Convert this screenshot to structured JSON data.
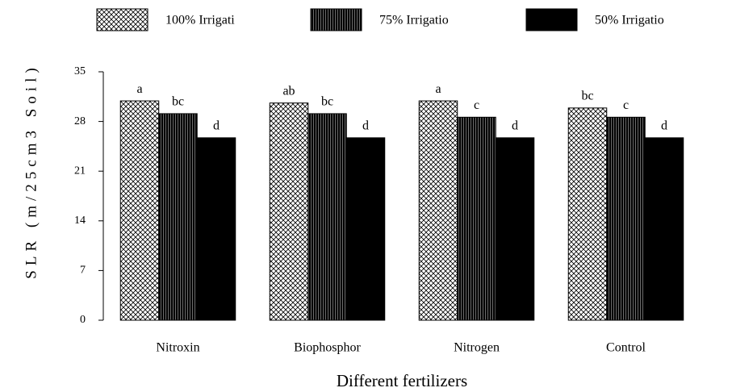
{
  "chart_data": {
    "type": "bar",
    "x_label": "Different fertilizers",
    "y_label": "SLR (m/25cm3 Soil)",
    "categories": [
      "Nitroxin",
      "Biophosphor",
      "Nitrogen",
      "Control"
    ],
    "series": [
      {
        "name": "100% Irrigati",
        "pattern": "crosshatch",
        "values": [
          30.9,
          30.6,
          30.9,
          29.9
        ],
        "annotations": [
          "a",
          "ab",
          "a",
          "bc"
        ]
      },
      {
        "name": "75% Irrigatio",
        "pattern": "dense",
        "values": [
          29.1,
          29.1,
          28.6,
          28.6
        ],
        "annotations": [
          "bc",
          "bc",
          "c",
          "c"
        ]
      },
      {
        "name": "50% Irrigatio",
        "pattern": "solid",
        "values": [
          25.7,
          25.7,
          25.7,
          25.7
        ],
        "annotations": [
          "d",
          "d",
          "d",
          "d"
        ]
      }
    ],
    "ylim": [
      0,
      35
    ],
    "yticks": [
      0,
      7,
      14,
      21,
      28,
      35
    ],
    "grid": false
  }
}
